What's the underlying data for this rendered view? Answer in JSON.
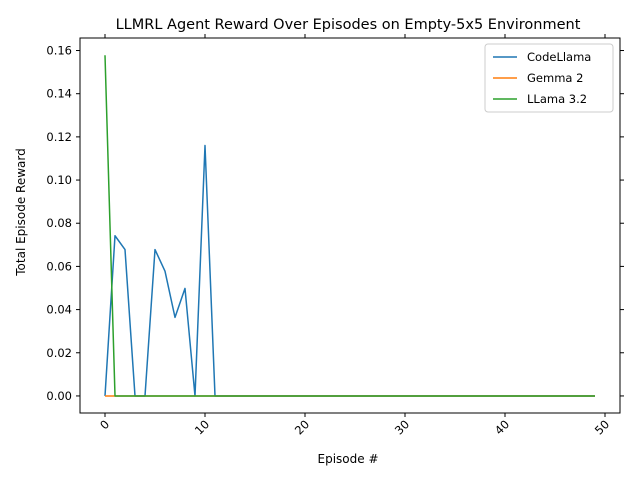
{
  "chart_data": {
    "type": "line",
    "title": "LLMRL Agent Reward Over Episodes on Empty-5x5 Environment",
    "xlabel": "Episode #",
    "ylabel": "Total Episode Reward",
    "xlim": [
      -2.5,
      51.5
    ],
    "ylim": [
      -0.0079,
      0.1658
    ],
    "xticks": [
      0,
      10,
      20,
      30,
      40,
      50
    ],
    "xtick_labels": [
      "0",
      "10",
      "20",
      "30",
      "40",
      "50"
    ],
    "yticks": [
      0.0,
      0.02,
      0.04,
      0.06,
      0.08,
      0.1,
      0.12,
      0.14,
      0.16
    ],
    "ytick_labels": [
      "0.00",
      "0.02",
      "0.04",
      "0.06",
      "0.08",
      "0.10",
      "0.12",
      "0.14",
      "0.16"
    ],
    "xtick_rotation": 45,
    "grid": false,
    "legend_location": "upper right",
    "x": [
      0,
      1,
      2,
      3,
      4,
      5,
      6,
      7,
      8,
      9,
      10,
      11,
      12,
      13,
      14,
      15,
      16,
      17,
      18,
      19,
      20,
      21,
      22,
      23,
      24,
      25,
      26,
      27,
      28,
      29,
      30,
      31,
      32,
      33,
      34,
      35,
      36,
      37,
      38,
      39,
      40,
      41,
      42,
      43,
      44,
      45,
      46,
      47,
      48,
      49
    ],
    "series": [
      {
        "name": "CodeLlama",
        "color": "#1f77b4",
        "values": [
          0.0,
          0.0742,
          0.0678,
          0.0,
          0.0,
          0.0678,
          0.0578,
          0.0364,
          0.0498,
          0.0,
          0.116,
          0,
          0,
          0,
          0,
          0,
          0,
          0,
          0,
          0,
          0,
          0,
          0,
          0,
          0,
          0,
          0,
          0,
          0,
          0,
          0,
          0,
          0,
          0,
          0,
          0,
          0,
          0,
          0,
          0,
          0,
          0,
          0,
          0,
          0,
          0,
          0,
          0,
          0,
          0
        ]
      },
      {
        "name": "Gemma 2",
        "color": "#ff7f0e",
        "values": [
          0,
          0,
          0,
          0,
          0,
          0,
          0,
          0,
          0,
          0,
          0,
          0,
          0,
          0,
          0,
          0,
          0,
          0,
          0,
          0,
          0,
          0,
          0,
          0,
          0,
          0,
          0,
          0,
          0,
          0,
          0,
          0,
          0,
          0,
          0,
          0,
          0,
          0,
          0,
          0,
          0,
          0,
          0,
          0,
          0,
          0,
          0,
          0,
          0,
          0
        ]
      },
      {
        "name": "LLama 3.2",
        "color": "#2ca02c",
        "values": [
          0.1578,
          0.0,
          0.0,
          0,
          0,
          0,
          0,
          0,
          0,
          0,
          0,
          0,
          0,
          0,
          0,
          0,
          0,
          0,
          0,
          0,
          0,
          0,
          0,
          0,
          0,
          0,
          0,
          0,
          0,
          0,
          0,
          0,
          0,
          0,
          0,
          0,
          0,
          0,
          0,
          0,
          0,
          0,
          0,
          0,
          0,
          0,
          0,
          0,
          0,
          0
        ]
      }
    ]
  }
}
